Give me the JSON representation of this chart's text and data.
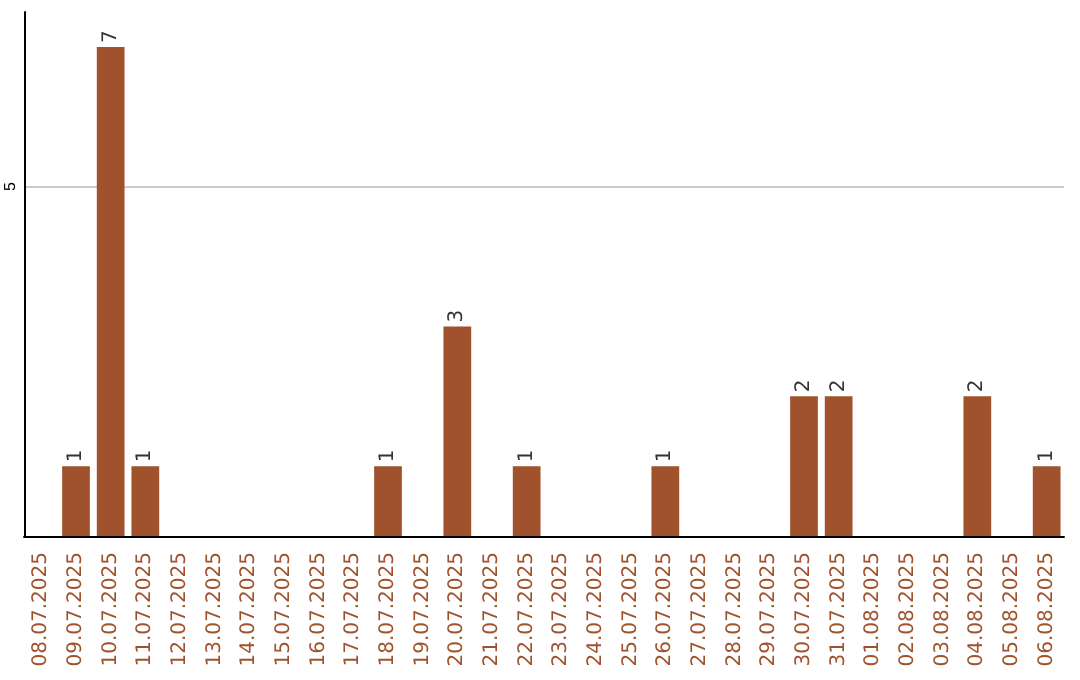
{
  "chart_data": {
    "type": "bar",
    "categories": [
      "08.07.2025",
      "09.07.2025",
      "10.07.2025",
      "11.07.2025",
      "12.07.2025",
      "13.07.2025",
      "14.07.2025",
      "15.07.2025",
      "16.07.2025",
      "17.07.2025",
      "18.07.2025",
      "19.07.2025",
      "20.07.2025",
      "21.07.2025",
      "22.07.2025",
      "23.07.2025",
      "24.07.2025",
      "25.07.2025",
      "26.07.2025",
      "27.07.2025",
      "28.07.2025",
      "29.07.2025",
      "30.07.2025",
      "31.07.2025",
      "01.08.2025",
      "02.08.2025",
      "03.08.2025",
      "04.08.2025",
      "05.08.2025",
      "06.08.2025"
    ],
    "values": [
      0,
      1,
      7,
      1,
      0,
      0,
      0,
      0,
      0,
      0,
      1,
      0,
      3,
      0,
      1,
      0,
      0,
      0,
      1,
      0,
      0,
      0,
      2,
      2,
      0,
      0,
      0,
      2,
      0,
      1
    ],
    "value_labels": [
      null,
      "1",
      "7",
      "1",
      null,
      null,
      null,
      null,
      null,
      null,
      "1",
      null,
      "3",
      null,
      "1",
      null,
      null,
      null,
      "1",
      null,
      null,
      null,
      "2",
      "2",
      null,
      null,
      null,
      "2",
      null,
      "1"
    ],
    "color": "#a0522d",
    "ylim": [
      0,
      7.5
    ],
    "yticks": [
      5
    ],
    "grid": "y"
  }
}
